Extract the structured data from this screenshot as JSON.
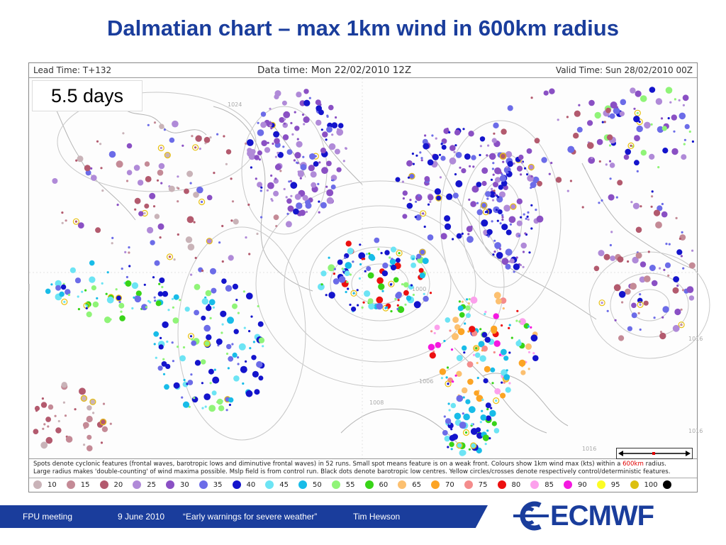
{
  "slide": {
    "title": "Dalmatian chart – max 1km wind in 600km radius"
  },
  "map": {
    "lead_time": "Lead Time: T+132",
    "data_time": "Data time:  Mon 22/02/2010 12Z",
    "valid_time": "Valid Time: Sun 28/02/2010 00Z",
    "badge": "5.5 days",
    "caption_line1": "Spots denote cyclonic features (frontal waves, barotropic lows and diminutive frontal waves) in 52 runs. Small spot means feature is on a weak front. Colours show 1km wind max (kts) within a",
    "caption_radius": "600km",
    "caption_line1_end": "radius.",
    "caption_line2": "Large radius makes 'double-counting' of wind maxima possible. Mslp field is from control run. Black dots denote barotropic low centres. Yellow circles/crosses denote respectively control/deterministic features.",
    "isobar_labels": [
      "1024",
      "1016",
      "1008",
      "1006",
      "1016",
      "1016",
      "1000"
    ]
  },
  "legend": [
    {
      "value": "10",
      "color": "#c9b3b8"
    },
    {
      "value": "15",
      "color": "#c48a96"
    },
    {
      "value": "20",
      "color": "#b35a6e"
    },
    {
      "value": "25",
      "color": "#b08ad8"
    },
    {
      "value": "30",
      "color": "#8a50c4"
    },
    {
      "value": "35",
      "color": "#6c6ce8"
    },
    {
      "value": "40",
      "color": "#1414cc"
    },
    {
      "value": "45",
      "color": "#6ce4f4"
    },
    {
      "value": "50",
      "color": "#18bce8"
    },
    {
      "value": "55",
      "color": "#90f478"
    },
    {
      "value": "60",
      "color": "#38d418"
    },
    {
      "value": "65",
      "color": "#fcc070"
    },
    {
      "value": "70",
      "color": "#fca424"
    },
    {
      "value": "75",
      "color": "#f48c8c"
    },
    {
      "value": "80",
      "color": "#ec1010"
    },
    {
      "value": "85",
      "color": "#fca0ec"
    },
    {
      "value": "90",
      "color": "#f418e0"
    },
    {
      "value": "95",
      "color": "#fcfc24"
    },
    {
      "value": "100",
      "color": "#dcc010"
    },
    {
      "value": ">",
      "color": "#000000"
    }
  ],
  "footer": {
    "meeting": "FPU meeting",
    "date": "9 June 2010",
    "talk": "“Early warnings for severe weather”",
    "author": "Tim Hewson",
    "logo": "ECMWF"
  },
  "colors": {
    "accent": "#1a3d9c"
  }
}
